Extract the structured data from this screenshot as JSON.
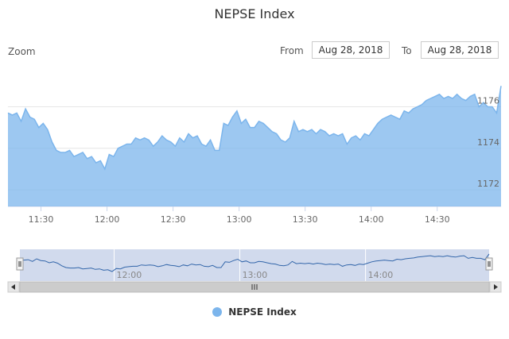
{
  "header": {
    "title": "NEPSE Index"
  },
  "range_selector": {
    "zoom_label": "Zoom",
    "from_label": "From",
    "from_value": "Aug 28, 2018",
    "to_label": "To",
    "to_value": "Aug 28, 2018"
  },
  "legend": {
    "label": "NEPSE Index"
  },
  "colors": {
    "series": "#7cb5ec",
    "navigator_mask": "rgba(102,133,194,0.3)"
  },
  "chart_data": {
    "type": "area",
    "title": "NEPSE Index",
    "xlabel": "",
    "ylabel": "",
    "x_ticks": [
      "11:30",
      "12:00",
      "12:30",
      "13:00",
      "13:30",
      "14:00",
      "14:30"
    ],
    "y_ticks": [
      1172,
      1174,
      1176
    ],
    "navigator_ticks": [
      "12:00",
      "13:00",
      "14:00"
    ],
    "ylim": [
      1171.2,
      1177.7
    ],
    "xlim": [
      "11:15",
      "14:59"
    ],
    "grid": true,
    "legend_position": "bottom",
    "series": [
      {
        "name": "NEPSE Index",
        "x": [
          "11:15",
          "11:17",
          "11:19",
          "11:21",
          "11:23",
          "11:25",
          "11:27",
          "11:29",
          "11:31",
          "11:33",
          "11:35",
          "11:37",
          "11:39",
          "11:41",
          "11:43",
          "11:45",
          "11:47",
          "11:49",
          "11:51",
          "11:53",
          "11:55",
          "11:57",
          "11:59",
          "12:01",
          "12:03",
          "12:05",
          "12:07",
          "12:09",
          "12:11",
          "12:13",
          "12:15",
          "12:17",
          "12:19",
          "12:21",
          "12:23",
          "12:25",
          "12:27",
          "12:29",
          "12:31",
          "12:33",
          "12:35",
          "12:37",
          "12:39",
          "12:41",
          "12:43",
          "12:45",
          "12:47",
          "12:49",
          "12:51",
          "12:53",
          "12:55",
          "12:57",
          "12:59",
          "13:01",
          "13:03",
          "13:05",
          "13:07",
          "13:09",
          "13:11",
          "13:13",
          "13:15",
          "13:17",
          "13:19",
          "13:21",
          "13:23",
          "13:25",
          "13:27",
          "13:29",
          "13:31",
          "13:33",
          "13:35",
          "13:37",
          "13:39",
          "13:41",
          "13:43",
          "13:45",
          "13:47",
          "13:49",
          "13:51",
          "13:53",
          "13:55",
          "13:57",
          "13:59",
          "14:01",
          "14:03",
          "14:05",
          "14:07",
          "14:09",
          "14:11",
          "14:13",
          "14:15",
          "14:17",
          "14:19",
          "14:21",
          "14:23",
          "14:25",
          "14:27",
          "14:29",
          "14:31",
          "14:33",
          "14:35",
          "14:37",
          "14:39",
          "14:41",
          "14:43",
          "14:45",
          "14:47",
          "14:49",
          "14:51",
          "14:53",
          "14:55",
          "14:57",
          "14:59"
        ],
        "values": [
          1175.7,
          1175.6,
          1175.7,
          1175.3,
          1175.9,
          1175.5,
          1175.4,
          1175.0,
          1175.2,
          1174.9,
          1174.3,
          1173.9,
          1173.8,
          1173.8,
          1173.9,
          1173.6,
          1173.7,
          1173.8,
          1173.5,
          1173.6,
          1173.3,
          1173.4,
          1173.0,
          1173.7,
          1173.6,
          1174.0,
          1174.1,
          1174.2,
          1174.2,
          1174.5,
          1174.4,
          1174.5,
          1174.4,
          1174.1,
          1174.3,
          1174.6,
          1174.4,
          1174.3,
          1174.1,
          1174.5,
          1174.3,
          1174.7,
          1174.5,
          1174.6,
          1174.2,
          1174.1,
          1174.4,
          1173.9,
          1173.9,
          1175.2,
          1175.1,
          1175.5,
          1175.8,
          1175.2,
          1175.4,
          1175.0,
          1175.0,
          1175.3,
          1175.2,
          1175.0,
          1174.8,
          1174.7,
          1174.4,
          1174.3,
          1174.5,
          1175.3,
          1174.8,
          1174.9,
          1174.8,
          1174.9,
          1174.7,
          1174.9,
          1174.8,
          1174.6,
          1174.7,
          1174.6,
          1174.7,
          1174.2,
          1174.5,
          1174.6,
          1174.4,
          1174.7,
          1174.6,
          1174.9,
          1175.2,
          1175.4,
          1175.5,
          1175.6,
          1175.5,
          1175.4,
          1175.8,
          1175.7,
          1175.9,
          1176.0,
          1176.1,
          1176.3,
          1176.4,
          1176.5,
          1176.6,
          1176.4,
          1176.5,
          1176.4,
          1176.6,
          1176.4,
          1176.3,
          1176.5,
          1176.6,
          1176.0,
          1176.2,
          1176.0,
          1176.0,
          1175.7,
          1177.0
        ]
      }
    ]
  }
}
